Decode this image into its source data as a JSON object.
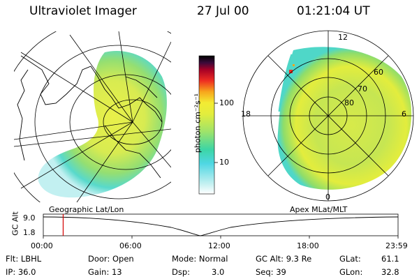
{
  "header": {
    "instrument": "Ultraviolet Imager",
    "date": "27 Jul 00",
    "time": "01:21:04 UT"
  },
  "left_panel": {
    "caption": "Geographic Lat/Lon"
  },
  "colorbar": {
    "units": "photon cm⁻²s⁻¹",
    "ticks": [
      "100",
      "10"
    ],
    "scale": "log",
    "colors": [
      "#ffffff",
      "#bfeff0",
      "#4fd7e3",
      "#3cd5a6",
      "#9ee36b",
      "#e3ed3d",
      "#f3eb33",
      "#f7a51c",
      "#ee2d22",
      "#a50026",
      "#3a0a3a",
      "#000000"
    ]
  },
  "right_panel": {
    "caption": "Apex MLat/MLT",
    "lat_labels": [
      "60",
      "70",
      "80"
    ],
    "mlt_labels": {
      "top": "12",
      "left": "18",
      "right": "6",
      "bottom": "0"
    }
  },
  "timeline": {
    "axis_label": "GC Alt",
    "y_ticks": [
      "9.0",
      "1.8"
    ],
    "x_ticks": [
      "00:00",
      "06:00",
      "12:00",
      "18:00",
      "23:59"
    ],
    "current_time_fraction": 0.056
  },
  "footer": {
    "flt": "Flt: LBHL",
    "ip": "IP: 36.0",
    "door": "Door: Open",
    "gain": "Gain: 13",
    "mode": "Mode: Normal",
    "dsp_label": "Dsp:",
    "dsp_value": "3.0",
    "gc_alt": "GC Alt: 9.3 Re",
    "seq": "Seq: 39",
    "glat_label": "GLat:",
    "glat_value": "61.1",
    "glon_label": "GLon:",
    "glon_value": "32.8"
  }
}
